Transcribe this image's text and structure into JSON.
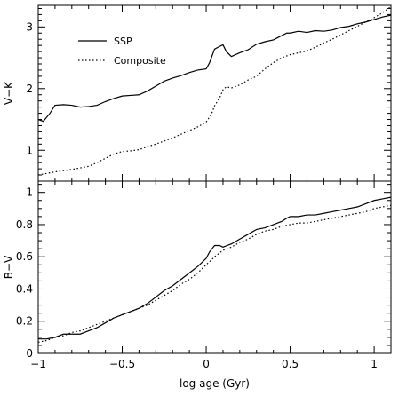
{
  "chart_data": [
    {
      "type": "line",
      "ylabel": "V−K",
      "xlim": [
        -1.0,
        1.1
      ],
      "ylim": [
        0.5,
        3.35
      ],
      "yticks": [
        1,
        2,
        3
      ],
      "xticks": [
        -1,
        -0.5,
        0,
        0.5,
        1
      ],
      "legend": {
        "placement": "top-left",
        "entries": [
          {
            "label": "SSP",
            "style": "solid"
          },
          {
            "label": "Composite",
            "style": "dotted"
          }
        ]
      },
      "series": [
        {
          "name": "SSP",
          "style": "solid",
          "x": [
            -1.0,
            -0.97,
            -0.93,
            -0.9,
            -0.85,
            -0.8,
            -0.75,
            -0.7,
            -0.65,
            -0.6,
            -0.55,
            -0.5,
            -0.45,
            -0.4,
            -0.35,
            -0.3,
            -0.25,
            -0.2,
            -0.15,
            -0.1,
            -0.05,
            0.0,
            0.02,
            0.05,
            0.07,
            0.1,
            0.12,
            0.15,
            0.2,
            0.25,
            0.3,
            0.35,
            0.4,
            0.45,
            0.48,
            0.5,
            0.55,
            0.6,
            0.65,
            0.7,
            0.75,
            0.8,
            0.85,
            0.9,
            0.95,
            1.0,
            1.05,
            1.1
          ],
          "y": [
            1.5,
            1.47,
            1.6,
            1.73,
            1.74,
            1.73,
            1.7,
            1.71,
            1.73,
            1.79,
            1.84,
            1.88,
            1.89,
            1.9,
            1.96,
            2.04,
            2.12,
            2.17,
            2.21,
            2.26,
            2.3,
            2.32,
            2.42,
            2.64,
            2.67,
            2.71,
            2.6,
            2.52,
            2.58,
            2.63,
            2.72,
            2.76,
            2.79,
            2.86,
            2.9,
            2.9,
            2.93,
            2.91,
            2.94,
            2.93,
            2.95,
            2.99,
            3.01,
            3.05,
            3.08,
            3.12,
            3.16,
            3.19
          ]
        },
        {
          "name": "Composite",
          "style": "dotted",
          "x": [
            -1.0,
            -0.9,
            -0.8,
            -0.7,
            -0.65,
            -0.6,
            -0.55,
            -0.5,
            -0.45,
            -0.4,
            -0.35,
            -0.3,
            -0.25,
            -0.2,
            -0.15,
            -0.1,
            -0.05,
            0.0,
            0.03,
            0.05,
            0.08,
            0.1,
            0.12,
            0.15,
            0.2,
            0.25,
            0.3,
            0.35,
            0.4,
            0.45,
            0.5,
            0.55,
            0.6,
            0.65,
            0.7,
            0.75,
            0.8,
            0.85,
            0.9,
            0.95,
            1.0,
            1.05,
            1.1
          ],
          "y": [
            0.6,
            0.65,
            0.69,
            0.74,
            0.8,
            0.87,
            0.94,
            0.98,
            0.99,
            1.01,
            1.06,
            1.1,
            1.15,
            1.2,
            1.26,
            1.32,
            1.38,
            1.46,
            1.58,
            1.72,
            1.85,
            1.98,
            2.03,
            2.01,
            2.06,
            2.14,
            2.2,
            2.32,
            2.42,
            2.5,
            2.55,
            2.58,
            2.61,
            2.67,
            2.74,
            2.8,
            2.87,
            2.94,
            3.01,
            3.08,
            3.15,
            3.23,
            3.33
          ]
        }
      ]
    },
    {
      "type": "line",
      "xlabel": "log age (Gyr)",
      "ylabel": "B−V",
      "xlim": [
        -1.0,
        1.1
      ],
      "ylim": [
        0.0,
        1.07
      ],
      "yticks": [
        0,
        0.2,
        0.4,
        0.6,
        0.8,
        1
      ],
      "ytick_labels": [
        "0",
        "0.2",
        "0.4",
        "0.6",
        "0.8",
        "1"
      ],
      "xticks": [
        -1,
        -0.5,
        0,
        0.5,
        1
      ],
      "xtick_labels": [
        "−1",
        "−0.5",
        "0",
        "0.5",
        "1"
      ],
      "series": [
        {
          "name": "SSP",
          "style": "solid",
          "x": [
            -1.0,
            -0.95,
            -0.9,
            -0.85,
            -0.8,
            -0.75,
            -0.7,
            -0.65,
            -0.6,
            -0.55,
            -0.5,
            -0.45,
            -0.4,
            -0.35,
            -0.3,
            -0.25,
            -0.2,
            -0.15,
            -0.1,
            -0.05,
            0.0,
            0.02,
            0.05,
            0.08,
            0.1,
            0.15,
            0.2,
            0.25,
            0.3,
            0.35,
            0.4,
            0.45,
            0.48,
            0.5,
            0.55,
            0.6,
            0.65,
            0.7,
            0.75,
            0.8,
            0.85,
            0.9,
            0.95,
            1.0,
            1.05,
            1.1
          ],
          "y": [
            0.09,
            0.09,
            0.1,
            0.12,
            0.12,
            0.12,
            0.14,
            0.16,
            0.19,
            0.22,
            0.24,
            0.26,
            0.28,
            0.31,
            0.35,
            0.39,
            0.42,
            0.46,
            0.5,
            0.54,
            0.59,
            0.63,
            0.67,
            0.67,
            0.66,
            0.68,
            0.71,
            0.74,
            0.77,
            0.78,
            0.8,
            0.82,
            0.84,
            0.85,
            0.85,
            0.86,
            0.86,
            0.87,
            0.88,
            0.89,
            0.9,
            0.91,
            0.93,
            0.95,
            0.96,
            0.97
          ]
        },
        {
          "name": "Composite",
          "style": "dotted",
          "x": [
            -1.0,
            -0.95,
            -0.9,
            -0.85,
            -0.8,
            -0.75,
            -0.7,
            -0.65,
            -0.6,
            -0.55,
            -0.5,
            -0.45,
            -0.4,
            -0.35,
            -0.3,
            -0.25,
            -0.2,
            -0.15,
            -0.1,
            -0.05,
            0.0,
            0.05,
            0.1,
            0.15,
            0.2,
            0.25,
            0.3,
            0.35,
            0.4,
            0.45,
            0.5,
            0.55,
            0.6,
            0.65,
            0.7,
            0.75,
            0.8,
            0.85,
            0.9,
            0.95,
            1.0,
            1.05,
            1.1
          ],
          "y": [
            0.07,
            0.08,
            0.1,
            0.11,
            0.13,
            0.14,
            0.16,
            0.18,
            0.2,
            0.22,
            0.24,
            0.26,
            0.28,
            0.3,
            0.33,
            0.36,
            0.39,
            0.43,
            0.46,
            0.5,
            0.55,
            0.6,
            0.64,
            0.66,
            0.69,
            0.71,
            0.74,
            0.76,
            0.77,
            0.79,
            0.8,
            0.81,
            0.81,
            0.82,
            0.83,
            0.84,
            0.85,
            0.86,
            0.87,
            0.88,
            0.9,
            0.91,
            0.92
          ]
        }
      ]
    }
  ]
}
